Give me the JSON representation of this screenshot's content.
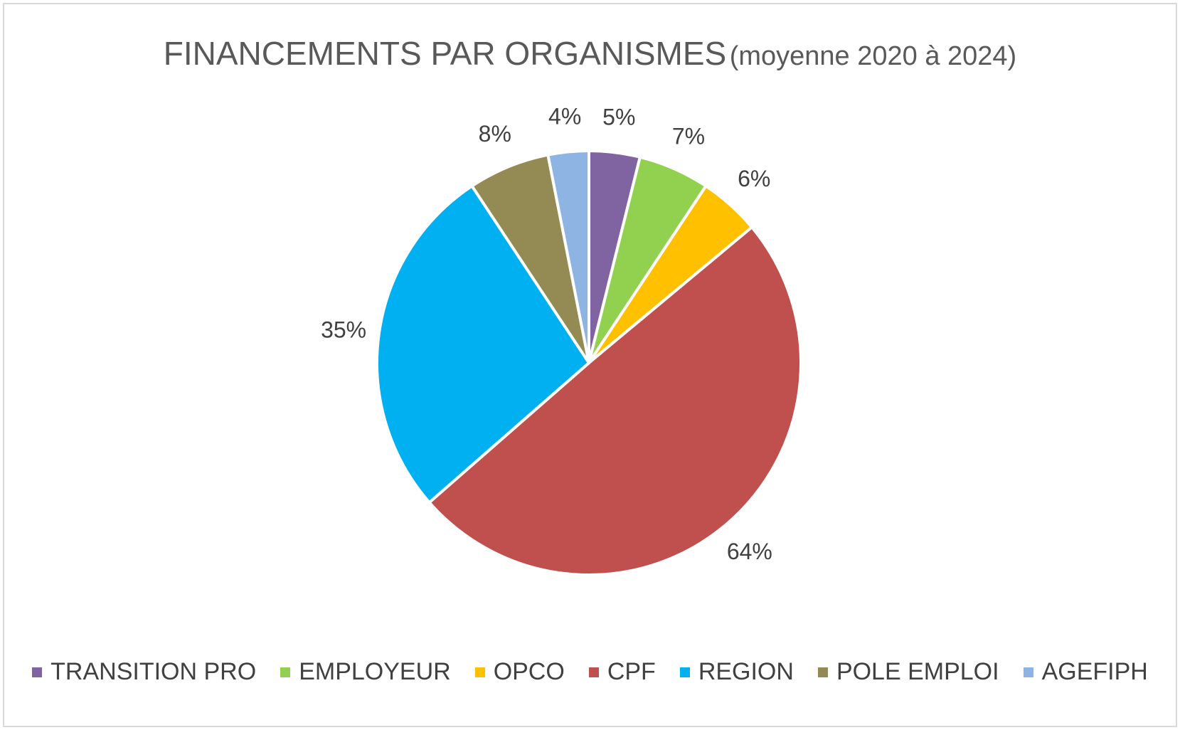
{
  "chart_data": {
    "type": "pie",
    "title": "FINANCEMENTS PAR ORGANISMES",
    "subtitle": "(moyenne 2020 à 2024)",
    "categories": [
      "TRANSITION PRO",
      "EMPLOYEUR",
      "OPCO",
      "CPF",
      "REGION",
      "POLE EMPLOI",
      "AGEFIPH"
    ],
    "values": [
      5,
      7,
      6,
      64,
      35,
      8,
      4
    ],
    "labels": [
      "5%",
      "7%",
      "6%",
      "64%",
      "35%",
      "8%",
      "4%"
    ],
    "colors": [
      "#8064a2",
      "#92d050",
      "#ffc000",
      "#c0504d",
      "#00b0f0",
      "#948a54",
      "#8eb4e3"
    ],
    "legend_position": "bottom"
  }
}
